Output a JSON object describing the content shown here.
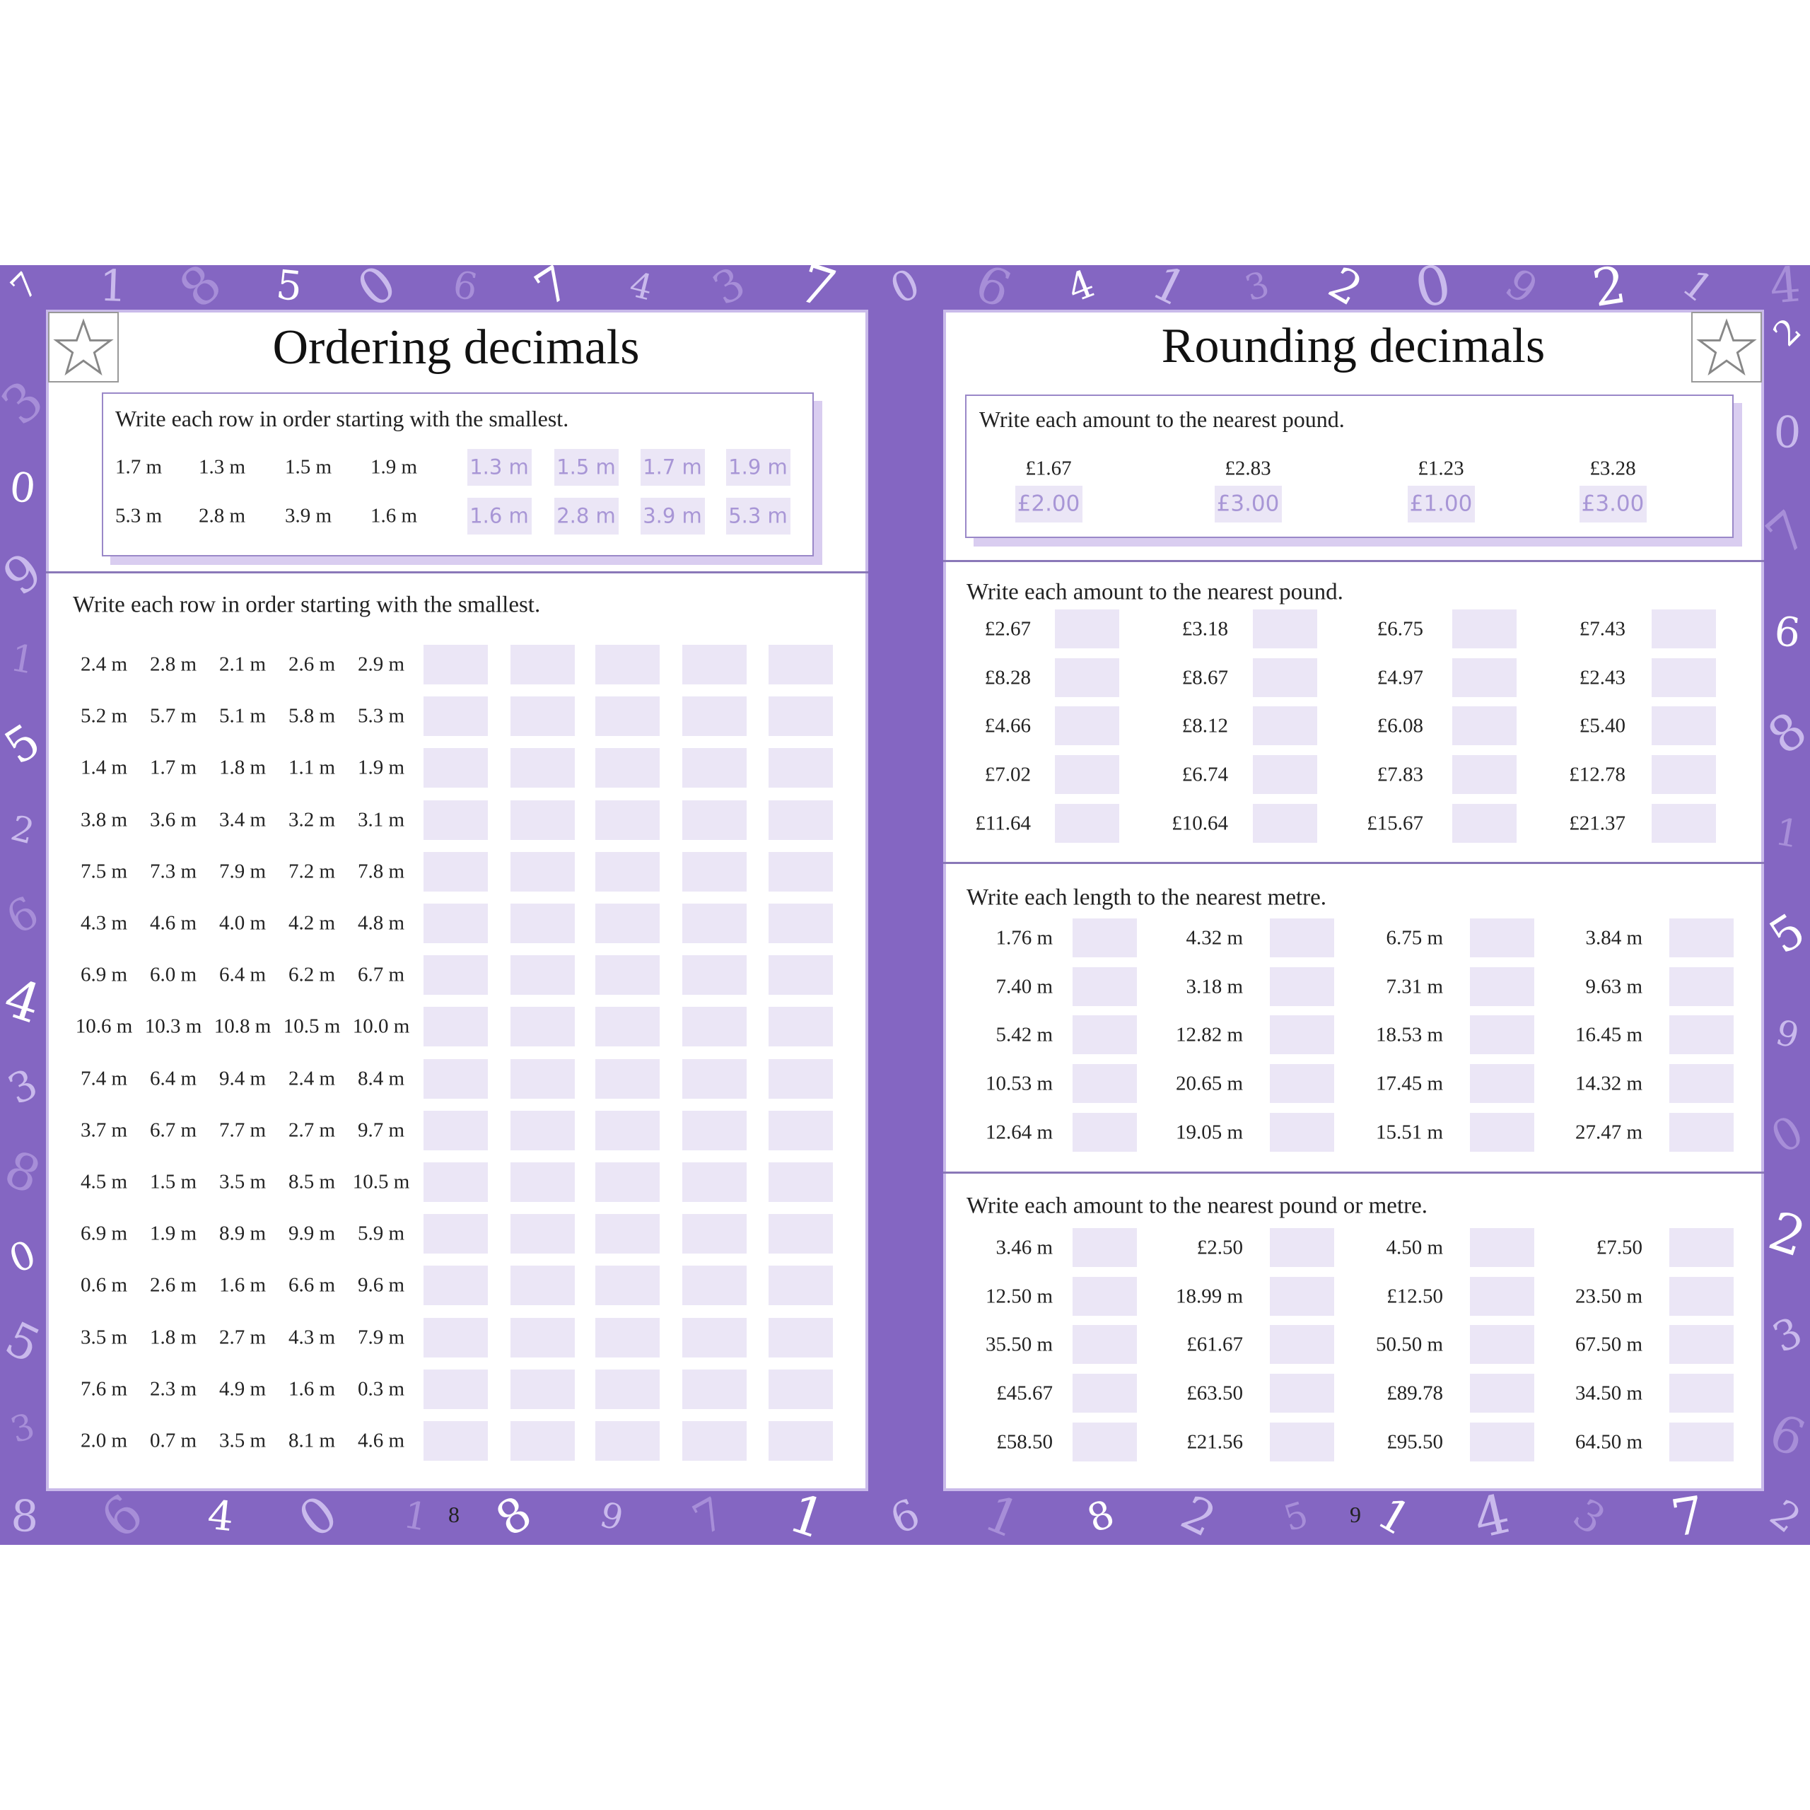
{
  "border_digits": {
    "top": [
      "7",
      "1",
      "8",
      "5",
      "0",
      "6",
      "7",
      "4",
      "3",
      "7",
      "0",
      "6",
      "4",
      "1",
      "3",
      "2",
      "0",
      "9",
      "2",
      "1",
      "4"
    ],
    "left": [
      "3",
      "0",
      "9",
      "1",
      "5",
      "2",
      "6",
      "4",
      "3",
      "8",
      "0",
      "5",
      "3"
    ],
    "right": [
      "2",
      "0",
      "7",
      "6",
      "8",
      "1",
      "5",
      "9",
      "0",
      "2",
      "3",
      "6"
    ],
    "bottom": [
      "8",
      "6",
      "4",
      "0",
      "1",
      "8",
      "9",
      "7",
      "1",
      "6",
      "1",
      "8",
      "2",
      "5",
      "1",
      "4",
      "3",
      "7",
      "2"
    ]
  },
  "left": {
    "title": "Ordering decimals",
    "example": {
      "instruction": "Write each row in order starting with the smallest.",
      "rows": [
        {
          "items": [
            "1.7 m",
            "1.3 m",
            "1.5 m",
            "1.9 m"
          ],
          "answers": [
            "1.3 m",
            "1.5 m",
            "1.7 m",
            "1.9 m"
          ]
        },
        {
          "items": [
            "5.3 m",
            "2.8 m",
            "3.9 m",
            "1.6 m"
          ],
          "answers": [
            "1.6 m",
            "2.8 m",
            "3.9 m",
            "5.3 m"
          ]
        }
      ]
    },
    "exercise": {
      "instruction": "Write each row in order starting with the smallest.",
      "rows": [
        [
          "2.4 m",
          "2.8 m",
          "2.1 m",
          "2.6 m",
          "2.9 m"
        ],
        [
          "5.2 m",
          "5.7 m",
          "5.1 m",
          "5.8 m",
          "5.3 m"
        ],
        [
          "1.4 m",
          "1.7 m",
          "1.8 m",
          "1.1 m",
          "1.9 m"
        ],
        [
          "3.8 m",
          "3.6 m",
          "3.4 m",
          "3.2 m",
          "3.1 m"
        ],
        [
          "7.5 m",
          "7.3 m",
          "7.9 m",
          "7.2 m",
          "7.8 m"
        ],
        [
          "4.3 m",
          "4.6 m",
          "4.0 m",
          "4.2 m",
          "4.8 m"
        ],
        [
          "6.9 m",
          "6.0 m",
          "6.4 m",
          "6.2 m",
          "6.7 m"
        ],
        [
          "10.6 m",
          "10.3 m",
          "10.8 m",
          "10.5 m",
          "10.0 m"
        ],
        [
          "7.4 m",
          "6.4 m",
          "9.4 m",
          "2.4 m",
          "8.4 m"
        ],
        [
          "3.7 m",
          "6.7 m",
          "7.7 m",
          "2.7 m",
          "9.7 m"
        ],
        [
          "4.5 m",
          "1.5 m",
          "3.5 m",
          "8.5 m",
          "10.5 m"
        ],
        [
          "6.9 m",
          "1.9 m",
          "8.9 m",
          "9.9 m",
          "5.9 m"
        ],
        [
          "0.6 m",
          "2.6 m",
          "1.6 m",
          "6.6 m",
          "9.6 m"
        ],
        [
          "3.5 m",
          "1.8 m",
          "2.7 m",
          "4.3 m",
          "7.9 m"
        ],
        [
          "7.6 m",
          "2.3 m",
          "4.9 m",
          "1.6 m",
          "0.3 m"
        ],
        [
          "2.0 m",
          "0.7 m",
          "3.5 m",
          "8.1 m",
          "4.6 m"
        ]
      ]
    },
    "page_number": "8"
  },
  "right": {
    "title": "Rounding decimals",
    "example": {
      "instruction": "Write each amount to the nearest pound.",
      "items": [
        {
          "value": "£1.67",
          "answer": "£2.00"
        },
        {
          "value": "£2.83",
          "answer": "£3.00"
        },
        {
          "value": "£1.23",
          "answer": "£1.00"
        },
        {
          "value": "£3.28",
          "answer": "£3.00"
        }
      ]
    },
    "sections": [
      {
        "instruction": "Write each amount to the nearest pound.",
        "rows": [
          [
            "£2.67",
            "£3.18",
            "£6.75",
            "£7.43"
          ],
          [
            "£8.28",
            "£8.67",
            "£4.97",
            "£2.43"
          ],
          [
            "£4.66",
            "£8.12",
            "£6.08",
            "£5.40"
          ],
          [
            "£7.02",
            "£6.74",
            "£7.83",
            "£12.78"
          ],
          [
            "£11.64",
            "£10.64",
            "£15.67",
            "£21.37"
          ]
        ]
      },
      {
        "instruction": "Write each length to the nearest metre.",
        "rows": [
          [
            "1.76 m",
            "4.32 m",
            "6.75 m",
            "3.84 m"
          ],
          [
            "7.40 m",
            "3.18 m",
            "7.31 m",
            "9.63 m"
          ],
          [
            "5.42 m",
            "12.82 m",
            "18.53 m",
            "16.45 m"
          ],
          [
            "10.53 m",
            "20.65 m",
            "17.45 m",
            "14.32 m"
          ],
          [
            "12.64 m",
            "19.05 m",
            "15.51 m",
            "27.47 m"
          ]
        ]
      },
      {
        "instruction": "Write each amount to the nearest pound or metre.",
        "rows": [
          [
            "3.46 m",
            "£2.50",
            "4.50 m",
            "£7.50"
          ],
          [
            "12.50 m",
            "18.99 m",
            "£12.50",
            "23.50 m"
          ],
          [
            "35.50 m",
            "£61.67",
            "50.50 m",
            "67.50 m"
          ],
          [
            "£45.67",
            "£63.50",
            "£89.78",
            "34.50 m"
          ],
          [
            "£58.50",
            "£21.56",
            "£95.50",
            "64.50 m"
          ]
        ]
      }
    ],
    "page_number": "9"
  }
}
